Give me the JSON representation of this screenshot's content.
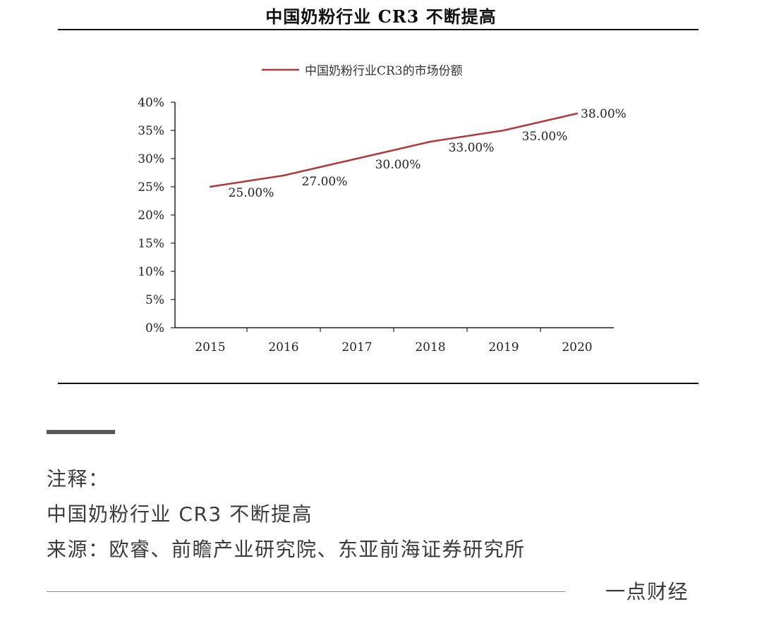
{
  "header": {
    "title": "中国奶粉行业 CR3 不断提高"
  },
  "colors": {
    "line": "#b03a3a",
    "axis": "#222222",
    "rule": "#111111",
    "note_text": "#3c3c3c"
  },
  "chart_data": {
    "type": "line",
    "x": [
      "2015",
      "2016",
      "2017",
      "2018",
      "2019",
      "2020"
    ],
    "series": [
      {
        "name": "中国奶粉行业CR3的市场份额",
        "values": [
          25,
          27,
          30,
          33,
          35,
          38
        ],
        "labels": [
          "25.00%",
          "27.00%",
          "30.00%",
          "33.00%",
          "35.00%",
          "38.00%"
        ]
      }
    ],
    "yticks": [
      0,
      5,
      10,
      15,
      20,
      25,
      30,
      35,
      40
    ],
    "ytick_labels": [
      "0%",
      "5%",
      "10%",
      "15%",
      "20%",
      "25%",
      "30%",
      "35%",
      "40%"
    ],
    "ylim": [
      0,
      40
    ],
    "grid": false,
    "legend": "top-center"
  },
  "notes": {
    "heading": "注释：",
    "caption": "中国奶粉行业 CR3 不断提高",
    "source": "来源：欧睿、前瞻产业研究院、东亚前海证券研究所"
  },
  "footer": {
    "brand": "一点财经"
  }
}
